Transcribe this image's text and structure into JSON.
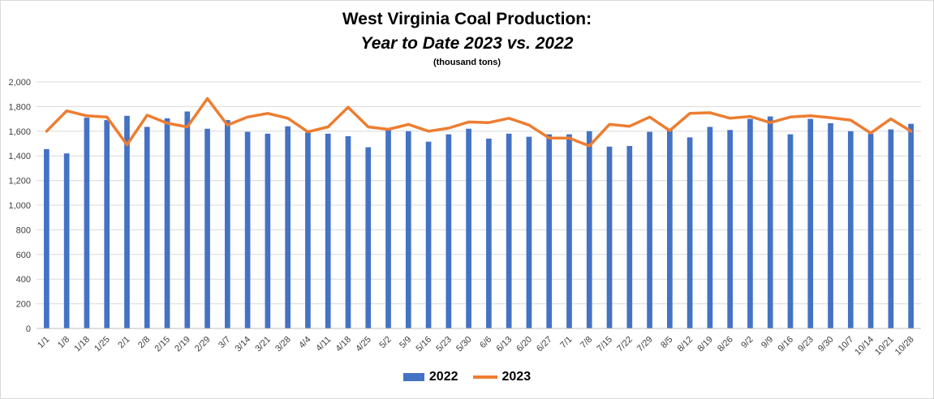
{
  "chart_data": {
    "type": "bar",
    "title": "West Virginia Coal Production:",
    "subtitle": "Year to Date 2023 vs. 2022",
    "units_note": "(thousand tons)",
    "categories": [
      "1/1",
      "1/8",
      "1/18",
      "1/25",
      "2/1",
      "2/8",
      "2/15",
      "2/19",
      "2/29",
      "3/7",
      "3/14",
      "3/21",
      "3/28",
      "4/4",
      "4/11",
      "4/18",
      "4/25",
      "5/2",
      "5/9",
      "5/16",
      "5/23",
      "5/30",
      "6/6",
      "6/13",
      "6/20",
      "6/27",
      "7/1",
      "7/8",
      "7/15",
      "7/22",
      "7/29",
      "8/5",
      "8/12",
      "8/19",
      "8/26",
      "9/2",
      "9/9",
      "9/16",
      "9/23",
      "9/30",
      "10/7",
      "10/14",
      "10/21",
      "10/28"
    ],
    "series": [
      {
        "name": "2022",
        "type": "bar",
        "color": "#4472C4",
        "values": [
          1455,
          1420,
          1710,
          1690,
          1725,
          1635,
          1705,
          1760,
          1620,
          1690,
          1595,
          1580,
          1640,
          1590,
          1580,
          1560,
          1470,
          1610,
          1600,
          1515,
          1575,
          1620,
          1540,
          1580,
          1555,
          1575,
          1575,
          1600,
          1475,
          1480,
          1595,
          1610,
          1550,
          1635,
          1610,
          1700,
          1720,
          1575,
          1700,
          1665,
          1600,
          1580,
          1615,
          1660
        ]
      },
      {
        "name": "2023",
        "type": "line",
        "color": "#ED7D31",
        "values": [
          1600,
          1765,
          1725,
          1715,
          1490,
          1730,
          1665,
          1635,
          1865,
          1650,
          1715,
          1745,
          1705,
          1595,
          1635,
          1795,
          1635,
          1615,
          1655,
          1600,
          1625,
          1675,
          1670,
          1705,
          1650,
          1545,
          1545,
          1480,
          1655,
          1640,
          1715,
          1605,
          1745,
          1750,
          1705,
          1720,
          1670,
          1715,
          1725,
          1710,
          1690,
          1585,
          1700,
          1600
        ]
      }
    ],
    "xlabel": "",
    "ylabel": "",
    "ylim": [
      0,
      2000
    ],
    "yticks": [
      0,
      200,
      400,
      600,
      800,
      1000,
      1200,
      1400,
      1600,
      1800,
      2000
    ],
    "ytick_labels": [
      "0",
      "200",
      "400",
      "600",
      "800",
      "1,000",
      "1,200",
      "1,400",
      "1,600",
      "1,800",
      "2,000"
    ],
    "grid": true,
    "legend_position": "bottom-center"
  }
}
